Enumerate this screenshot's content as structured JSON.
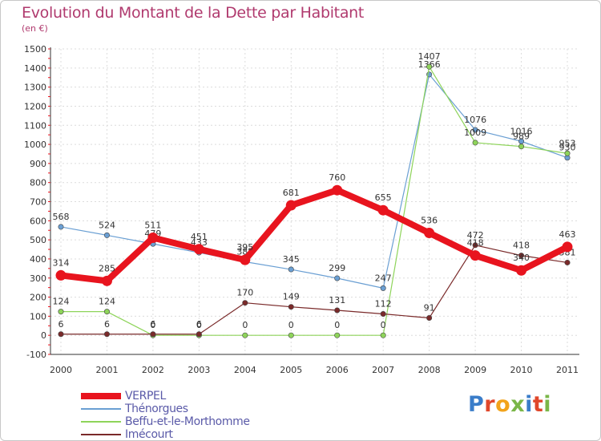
{
  "title": "Evolution du Montant de la Dette par Habitant",
  "subtitle": "(en €)",
  "logo": {
    "text": "Proxiti",
    "letter_colors": [
      "#3a7dc9",
      "#e0472b",
      "#f2a31b",
      "#7ab648",
      "#3a7dc9",
      "#e0472b",
      "#7ab648"
    ]
  },
  "chart_data": {
    "type": "line",
    "x": [
      "2000",
      "2001",
      "2002",
      "2003",
      "2004",
      "2005",
      "2006",
      "2007",
      "2008",
      "2009",
      "2010",
      "2011"
    ],
    "ylim": [
      -100,
      1500
    ],
    "yticks": [
      -100,
      0,
      100,
      200,
      300,
      400,
      500,
      600,
      700,
      800,
      900,
      1000,
      1100,
      1200,
      1300,
      1400,
      1500
    ],
    "grid": true,
    "legend_position": "bottom-left",
    "series": [
      {
        "name": "VERPEL",
        "color": "#e8141e",
        "values": [
          314,
          285,
          511,
          451,
          395,
          681,
          760,
          655,
          536,
          418,
          340,
          463
        ],
        "labels": [
          "314",
          "285",
          "511",
          "451",
          "395",
          "681",
          "760",
          "655",
          "536",
          "418",
          "340",
          "463"
        ],
        "emphasis": true
      },
      {
        "name": "Thénorgues",
        "color": "#6a9fd3",
        "values": [
          568,
          524,
          479,
          433,
          385,
          345,
          299,
          247,
          1366,
          1076,
          1016,
          930
        ],
        "labels": [
          "568",
          "524",
          "479",
          "433",
          "385",
          "345",
          "299",
          "247",
          "1366",
          "1076",
          "1016",
          "930"
        ]
      },
      {
        "name": "Beffu-et-le-Morthomme",
        "color": "#8ed45a",
        "values": [
          124,
          124,
          0,
          0,
          0,
          0,
          0,
          0,
          1407,
          1009,
          989,
          953
        ],
        "labels": [
          "124",
          "124",
          "0",
          "0",
          "0",
          "0",
          "0",
          "0",
          "1407",
          "1009",
          "989",
          "953"
        ]
      },
      {
        "name": "Imécourt",
        "color": "#7a2a2a",
        "values": [
          6,
          6,
          6,
          6,
          170,
          149,
          131,
          112,
          91,
          472,
          418,
          381
        ],
        "labels": [
          "6",
          "6",
          "6",
          "6",
          "170",
          "149",
          "131",
          "112",
          "91",
          "472",
          "418",
          "381"
        ]
      }
    ]
  }
}
